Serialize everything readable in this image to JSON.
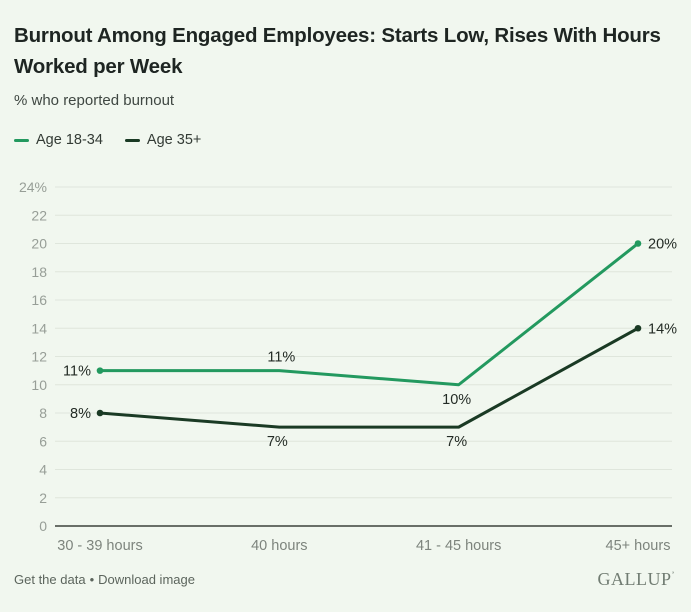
{
  "header": {
    "title_lines": [
      "Burnout Among Engaged Employees: Starts Low, Rises With Hours",
      "Worked per Week"
    ],
    "title": "Burnout Among Engaged Employees: Starts Low, Rises With Hours Worked per Week",
    "subtitle": "% who reported burnout"
  },
  "chart_data": {
    "type": "line",
    "title": "Burnout Among Engaged Employees: Starts Low, Rises With Hours Worked per Week",
    "ylabel": "% who reported burnout",
    "xlabel": "",
    "ylim": [
      0,
      24
    ],
    "grid": true,
    "legend_position": "top-left",
    "categories": [
      "30 - 39 hours",
      "40 hours",
      "41 - 45 hours",
      "45+ hours"
    ],
    "series": [
      {
        "id": "age-18-34",
        "name": "Age 18-34",
        "color": "#23995f",
        "values": [
          11,
          11,
          10,
          20
        ],
        "labels": [
          "11%",
          "11%",
          "10%",
          "20%"
        ],
        "label_positions": [
          "left",
          "above",
          "below",
          "right"
        ],
        "endpoint_dots": [
          0,
          3
        ]
      },
      {
        "id": "age-35-plus",
        "name": "Age 35+",
        "color": "#1a3a24",
        "values": [
          8,
          7,
          7,
          14
        ],
        "labels": [
          "8%",
          "7%",
          "7%",
          "14%"
        ],
        "label_positions": [
          "left",
          "below",
          "below",
          "right"
        ],
        "endpoint_dots": [
          0,
          3
        ]
      }
    ],
    "yticks": [
      {
        "value": 24,
        "label": "24%"
      },
      {
        "value": 22,
        "label": "22"
      },
      {
        "value": 20,
        "label": "20"
      },
      {
        "value": 18,
        "label": "18"
      },
      {
        "value": 16,
        "label": "16"
      },
      {
        "value": 14,
        "label": "14"
      },
      {
        "value": 12,
        "label": "12"
      },
      {
        "value": 10,
        "label": "10"
      },
      {
        "value": 8,
        "label": "8"
      },
      {
        "value": 6,
        "label": "6"
      },
      {
        "value": 4,
        "label": "4"
      },
      {
        "value": 2,
        "label": "2"
      },
      {
        "value": 0,
        "label": "0"
      }
    ],
    "colors": {
      "gridline": "#dfe6dc",
      "axis": "#3c423c",
      "background": "#f1f7ef"
    }
  },
  "footer": {
    "get_data_label": "Get the data",
    "separator": "•",
    "download_label": "Download image",
    "logo_text": "GALLUP",
    "logo_mark": "’"
  }
}
